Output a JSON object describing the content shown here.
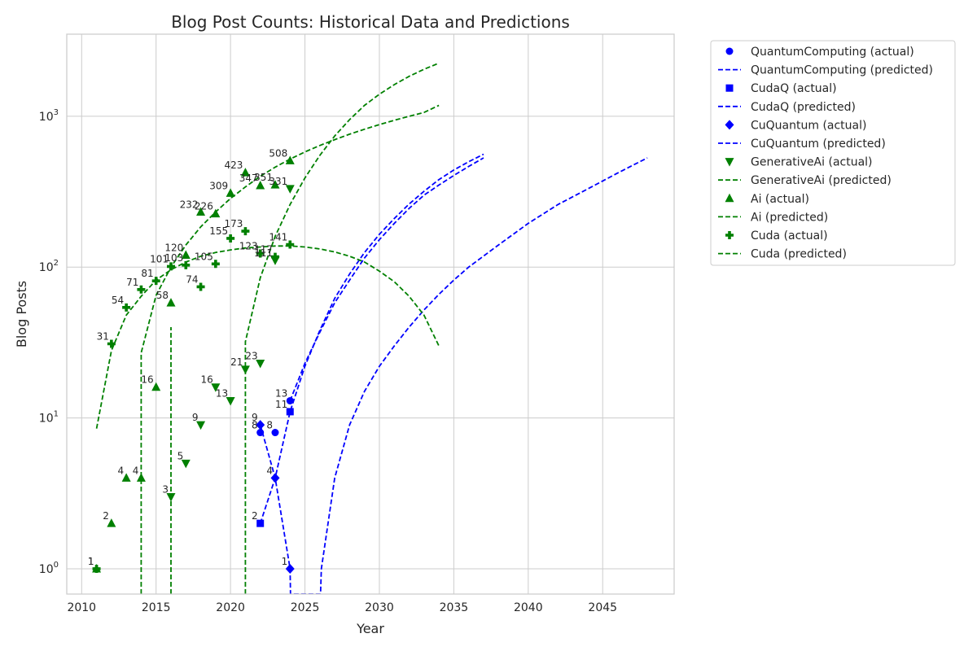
{
  "chart_data": {
    "type": "scatter",
    "title": "Blog Post Counts: Historical Data and Predictions",
    "xlabel": "Year",
    "ylabel": "Blog Posts",
    "xlim": [
      2009.0,
      2049.8
    ],
    "ylim": [
      0.68,
      3500
    ],
    "yscale": "log",
    "grid": true,
    "legend_position": "outside-right",
    "x_ticks": [
      2010,
      2015,
      2020,
      2025,
      2030,
      2035,
      2040,
      2045
    ],
    "x_tick_labels": [
      "2010",
      "2015",
      "2020",
      "2025",
      "2030",
      "2035",
      "2040",
      "2045"
    ],
    "y_ticks": [
      1,
      10,
      100,
      1000
    ],
    "y_tick_labels": [
      {
        "base": "10",
        "exp": "0"
      },
      {
        "base": "10",
        "exp": "1"
      },
      {
        "base": "10",
        "exp": "2"
      },
      {
        "base": "10",
        "exp": "3"
      }
    ],
    "series": [
      {
        "name": "QuantumComputing",
        "actual_label": "QuantumComputing (actual)",
        "predicted_label": "QuantumComputing (predicted)",
        "color": "#0000ff",
        "marker": "circle",
        "points": [
          [
            2022,
            8
          ],
          [
            2023,
            8
          ],
          [
            2024,
            13
          ]
        ],
        "labels": [
          "8",
          "8",
          "13"
        ],
        "predicted": [
          [
            2024,
            13
          ],
          [
            2025,
            23
          ],
          [
            2026,
            37
          ],
          [
            2027,
            58
          ],
          [
            2028,
            82
          ],
          [
            2029,
            115
          ],
          [
            2030,
            152
          ],
          [
            2031,
            195
          ],
          [
            2032,
            245
          ],
          [
            2033,
            300
          ],
          [
            2034,
            350
          ],
          [
            2035,
            405
          ],
          [
            2036,
            465
          ],
          [
            2037,
            530
          ]
        ]
      },
      {
        "name": "CudaQ",
        "actual_label": "CudaQ (actual)",
        "predicted_label": "CudaQ (predicted)",
        "color": "#0000ff",
        "marker": "square",
        "points": [
          [
            2022,
            2
          ],
          [
            2024,
            11
          ]
        ],
        "labels": [
          "2",
          "11"
        ],
        "predicted": [
          [
            2022,
            2
          ],
          [
            2023,
            4
          ],
          [
            2024,
            11
          ],
          [
            2025,
            22
          ],
          [
            2026,
            38
          ],
          [
            2027,
            62
          ],
          [
            2028,
            90
          ],
          [
            2029,
            125
          ],
          [
            2030,
            165
          ],
          [
            2031,
            210
          ],
          [
            2032,
            262
          ],
          [
            2033,
            318
          ],
          [
            2034,
            380
          ],
          [
            2035,
            440
          ],
          [
            2036,
            500
          ],
          [
            2037,
            560
          ]
        ]
      },
      {
        "name": "CuQuantum",
        "actual_label": "CuQuantum (actual)",
        "predicted_label": "CuQuantum (predicted)",
        "color": "#0000ff",
        "marker": "diamond",
        "points": [
          [
            2022,
            9
          ],
          [
            2023,
            4
          ],
          [
            2024,
            1
          ]
        ],
        "labels": [
          "9",
          "4",
          "1"
        ],
        "predicted": [
          [
            2022,
            9
          ],
          [
            2023,
            4
          ],
          [
            2024,
            1
          ],
          [
            2024.03,
            0.68
          ],
          [
            2026.05,
            0.68
          ],
          [
            2026.1,
            1
          ],
          [
            2027,
            4
          ],
          [
            2028,
            9
          ],
          [
            2029,
            15
          ],
          [
            2030,
            22
          ],
          [
            2031,
            30
          ],
          [
            2032,
            40
          ],
          [
            2033,
            52
          ],
          [
            2034,
            66
          ],
          [
            2035,
            82
          ],
          [
            2036,
            100
          ],
          [
            2038,
            140
          ],
          [
            2040,
            195
          ],
          [
            2042,
            260
          ],
          [
            2044,
            330
          ],
          [
            2046,
            420
          ],
          [
            2048,
            530
          ]
        ]
      },
      {
        "name": "GenerativeAi",
        "actual_label": "GenerativeAi (actual)",
        "predicted_label": "GenerativeAi (predicted)",
        "color": "#008000",
        "marker": "triangle-down",
        "points": [
          [
            2016,
            3
          ],
          [
            2017,
            5
          ],
          [
            2018,
            9
          ],
          [
            2019,
            16
          ],
          [
            2020,
            13
          ],
          [
            2021,
            21
          ],
          [
            2022,
            23
          ],
          [
            2023,
            111
          ],
          [
            2024,
            331
          ]
        ],
        "labels": [
          "3",
          "5",
          "9",
          "16",
          "13",
          "21",
          "23",
          "111",
          "331"
        ],
        "predicted": [
          [
            2021,
            0.68
          ],
          [
            2021,
            32
          ],
          [
            2022,
            85
          ],
          [
            2023,
            160
          ],
          [
            2024,
            260
          ],
          [
            2025,
            390
          ],
          [
            2026,
            550
          ],
          [
            2027,
            740
          ],
          [
            2028,
            950
          ],
          [
            2029,
            1180
          ],
          [
            2030,
            1400
          ],
          [
            2031,
            1620
          ],
          [
            2032,
            1840
          ],
          [
            2033,
            2050
          ],
          [
            2034,
            2250
          ]
        ]
      },
      {
        "name": "Ai",
        "actual_label": "Ai (actual)",
        "predicted_label": "Ai (predicted)",
        "color": "#008000",
        "marker": "triangle-up",
        "points": [
          [
            2011,
            1
          ],
          [
            2012,
            2
          ],
          [
            2013,
            4
          ],
          [
            2014,
            4
          ],
          [
            2015,
            16
          ],
          [
            2016,
            58
          ],
          [
            2017,
            120
          ],
          [
            2018,
            232
          ],
          [
            2019,
            226
          ],
          [
            2020,
            309
          ],
          [
            2021,
            423
          ],
          [
            2022,
            347
          ],
          [
            2023,
            351
          ],
          [
            2024,
            508
          ]
        ],
        "labels": [
          "1",
          "2",
          "4",
          "4",
          "16",
          "58",
          "120",
          "232",
          "226",
          "309",
          "423",
          "347",
          "351",
          "508"
        ],
        "predicted": [
          [
            2014,
            0.68
          ],
          [
            2014,
            27
          ],
          [
            2015,
            65
          ],
          [
            2016,
            100
          ],
          [
            2017,
            140
          ],
          [
            2018,
            185
          ],
          [
            2019,
            232
          ],
          [
            2020,
            285
          ],
          [
            2021,
            340
          ],
          [
            2022,
            400
          ],
          [
            2023,
            460
          ],
          [
            2024,
            520
          ],
          [
            2025,
            580
          ],
          [
            2026,
            640
          ],
          [
            2027,
            700
          ],
          [
            2028,
            760
          ],
          [
            2029,
            820
          ],
          [
            2030,
            880
          ],
          [
            2031,
            940
          ],
          [
            2032,
            1000
          ],
          [
            2033,
            1060
          ],
          [
            2034,
            1180
          ]
        ]
      },
      {
        "name": "Cuda",
        "actual_label": "Cuda (actual)",
        "predicted_label": "Cuda (predicted)",
        "color": "#008000",
        "marker": "plus",
        "points": [
          [
            2011,
            1
          ],
          [
            2012,
            31
          ],
          [
            2013,
            54
          ],
          [
            2014,
            71
          ],
          [
            2015,
            81
          ],
          [
            2016,
            101
          ],
          [
            2017,
            103
          ],
          [
            2018,
            74
          ],
          [
            2019,
            105
          ],
          [
            2020,
            155
          ],
          [
            2021,
            173
          ],
          [
            2022,
            123
          ],
          [
            2023,
            117
          ],
          [
            2024,
            141
          ]
        ],
        "labels": [
          "1",
          "31",
          "54",
          "71",
          "81",
          "101",
          "103",
          "74",
          "105",
          "155",
          "173",
          "123",
          "117",
          "141"
        ],
        "predicted": [
          [
            2011,
            8.5
          ],
          [
            2012,
            28
          ],
          [
            2013,
            48
          ],
          [
            2014,
            64
          ],
          [
            2015,
            82
          ],
          [
            2016,
            96
          ],
          [
            2017,
            108
          ],
          [
            2018,
            118
          ],
          [
            2019,
            125
          ],
          [
            2020,
            130
          ],
          [
            2021,
            134
          ],
          [
            2022,
            136
          ],
          [
            2023,
            138
          ],
          [
            2024,
            138
          ],
          [
            2025,
            136
          ],
          [
            2026,
            132
          ],
          [
            2027,
            126
          ],
          [
            2028,
            118
          ],
          [
            2029,
            108
          ],
          [
            2030,
            94
          ],
          [
            2031,
            80
          ],
          [
            2032,
            64
          ],
          [
            2033,
            48
          ],
          [
            2034,
            30
          ]
        ]
      },
      {
        "name": "GenerativeAi-vertical",
        "hidden_in_legend": true,
        "color": "#008000",
        "predicted": [
          [
            2016,
            0.68
          ],
          [
            2016,
            40
          ]
        ]
      }
    ]
  }
}
